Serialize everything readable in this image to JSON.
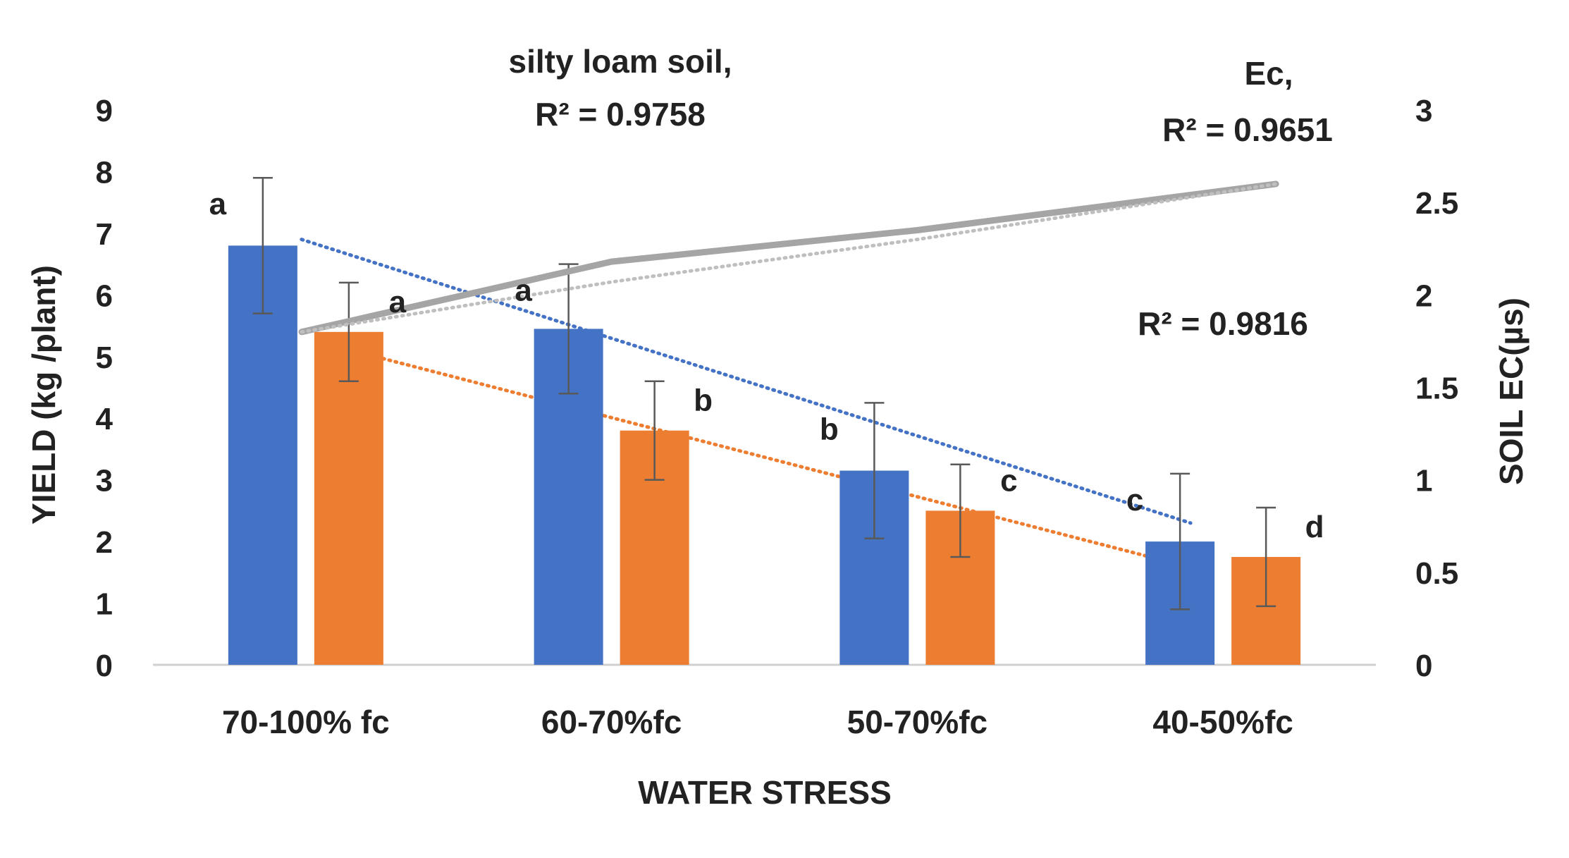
{
  "chart_data": {
    "type": "bar",
    "categories": [
      "70-100% fc",
      "60-70%fc",
      "50-70%fc",
      "40-50%fc"
    ],
    "xlabel": "WATER STRESS",
    "ylabel": "YIELD (kg /plant)",
    "y2label": "SOIL EC(µs)",
    "ylim": [
      0,
      9
    ],
    "y2lim": [
      0,
      3
    ],
    "yticks": [
      0,
      1,
      2,
      3,
      4,
      5,
      6,
      7,
      8,
      9
    ],
    "y2ticks": [
      "0",
      "0.5",
      "1",
      "1.5",
      "2",
      "2.5",
      "3"
    ],
    "grid": false,
    "series": [
      {
        "color": "#4472C4",
        "values": [
          6.8,
          5.45,
          3.15,
          2.0
        ],
        "error": [
          1.1,
          1.05,
          1.1,
          1.1
        ],
        "letters": [
          "a",
          "a",
          "b",
          "c"
        ],
        "trend": [
          6.9,
          5.1,
          3.5,
          2.3
        ],
        "trend_color": "#4472C4"
      },
      {
        "color": "#ED7D31",
        "values": [
          5.4,
          3.8,
          2.5,
          1.75
        ],
        "error": [
          0.8,
          0.8,
          0.75,
          0.8
        ],
        "letters": [
          "a",
          "b",
          "c",
          "d"
        ],
        "trend": [
          5.2,
          4.0,
          2.8,
          1.5
        ],
        "trend_color": "#ED7D31"
      }
    ],
    "line_series": [
      {
        "axis": "y2",
        "color": "#A5A5A5",
        "values": [
          1.8,
          2.18,
          2.35,
          2.6
        ],
        "trend": [
          1.8,
          2.07,
          2.3,
          2.6
        ]
      }
    ],
    "annotations": {
      "silty_line1": "silty loam soil,",
      "silty_line2": "R² = 0.9758",
      "ec_line1": "Ec,",
      "ec_line2": "R² = 0.9651",
      "r2_third": "R² = 0.9816"
    }
  }
}
